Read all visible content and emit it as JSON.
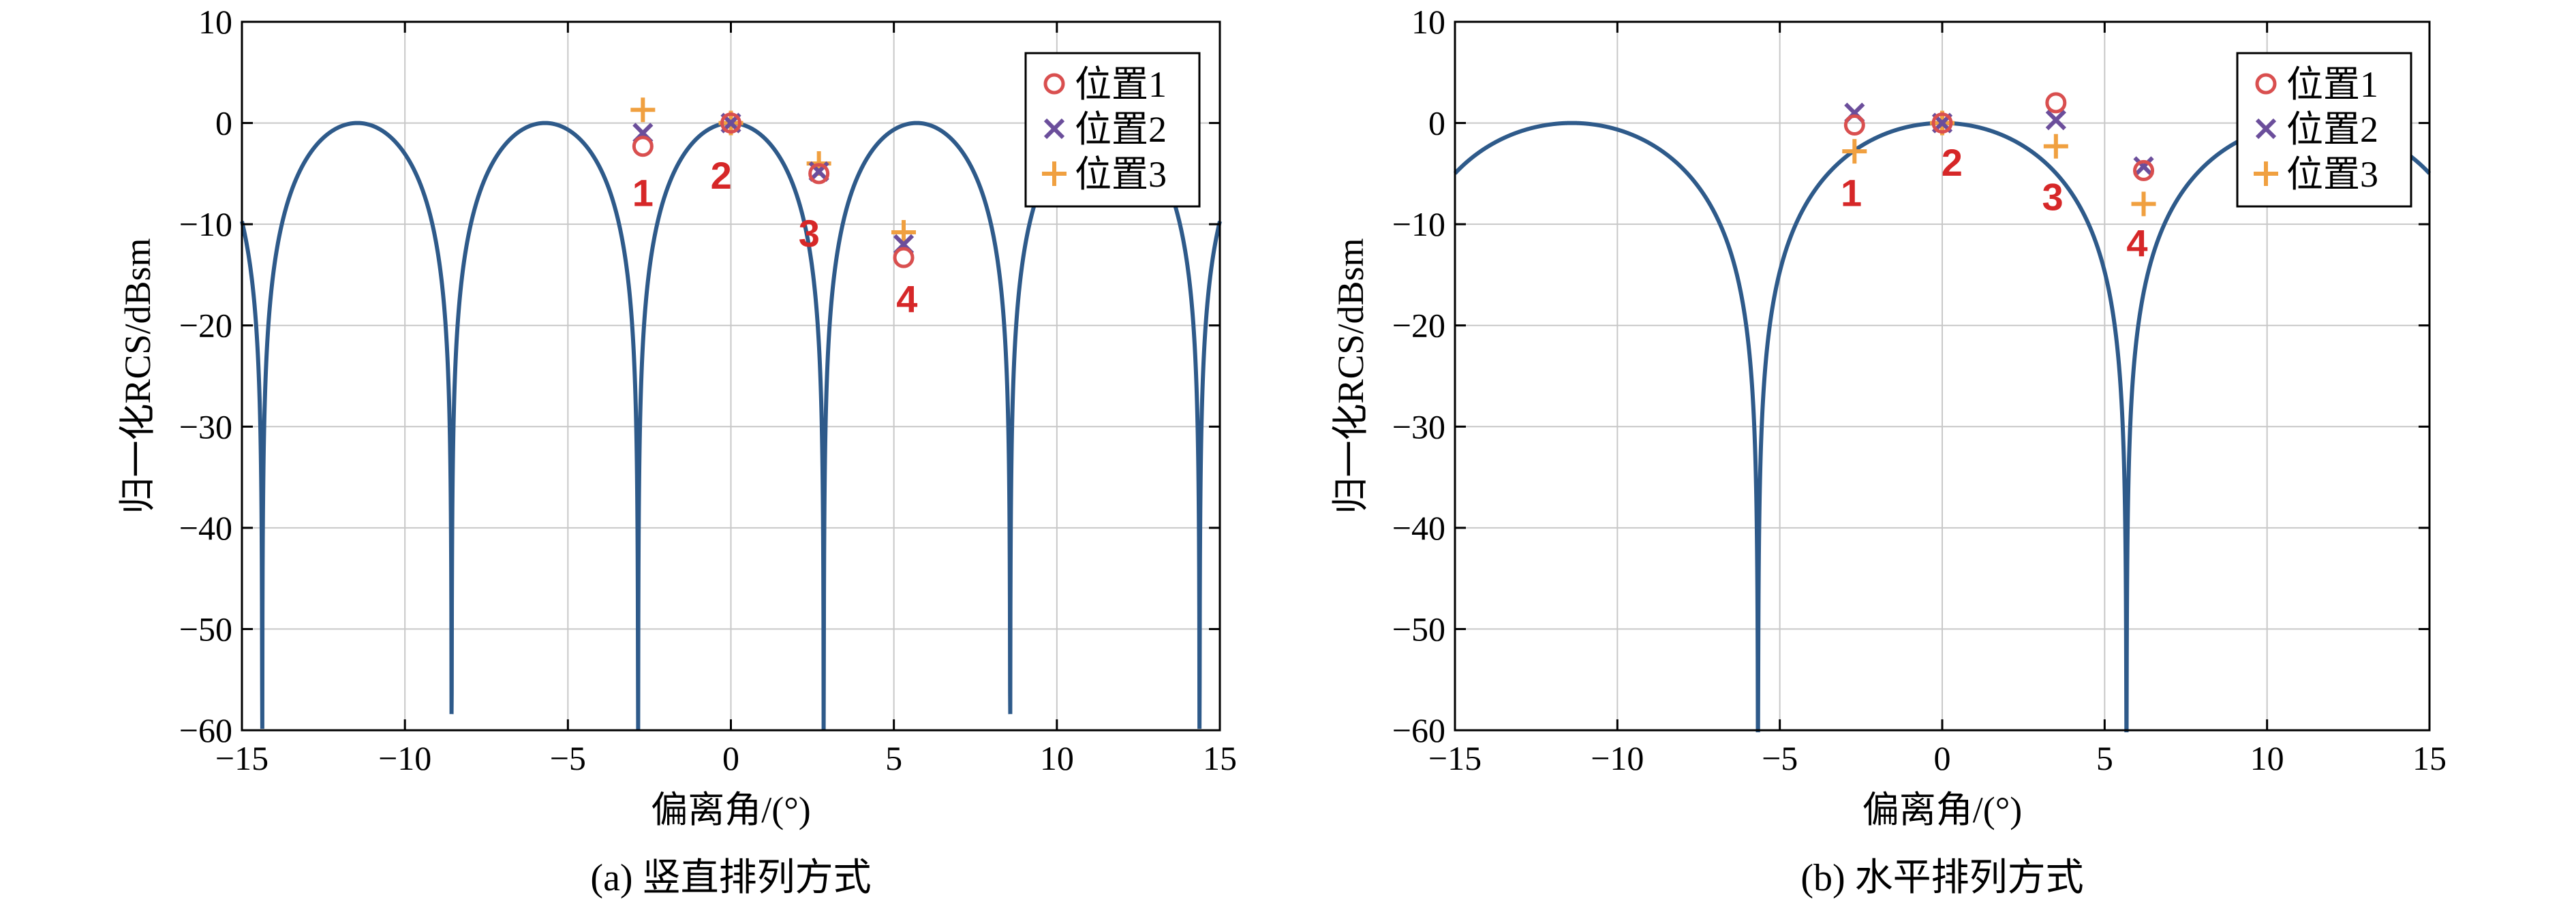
{
  "chart_data": [
    {
      "type": "line",
      "caption": "(a) 竖直排列方式",
      "xlabel": "偏离角/(°)",
      "ylabel": "归一化RCS/dBsm",
      "xlim": [
        -15,
        15
      ],
      "ylim": [
        -60,
        10
      ],
      "xticks": [
        "−15",
        "−10",
        "−5",
        "0",
        "5",
        "10",
        "15"
      ],
      "yticks": [
        "10",
        "0",
        "−10",
        "−20",
        "−30",
        "−40",
        "−50",
        "−60"
      ],
      "grid": true,
      "legend_position": "top-right",
      "pattern": {
        "null_spacing_deg": 5.7
      },
      "series": [
        {
          "name": "位置1",
          "marker": "circle",
          "color": "#d94f4f",
          "x": [
            -2.7,
            0,
            2.7,
            5.3
          ],
          "y": [
            -2.3,
            0,
            -5.0,
            -13.3
          ]
        },
        {
          "name": "位置2",
          "marker": "x",
          "color": "#6b4e9b",
          "x": [
            -2.7,
            0,
            2.7,
            5.3
          ],
          "y": [
            -1.0,
            0,
            -4.8,
            -12.0
          ]
        },
        {
          "name": "位置3",
          "marker": "plus",
          "color": "#f0a040",
          "x": [
            -2.7,
            0,
            2.7,
            5.3
          ],
          "y": [
            1.3,
            0,
            -4.0,
            -10.8
          ]
        }
      ],
      "position_labels": [
        {
          "text": "1",
          "x": -2.7,
          "y": -8.2
        },
        {
          "text": "2",
          "x": -0.3,
          "y": -6.5
        },
        {
          "text": "3",
          "x": 2.4,
          "y": -12.2
        },
        {
          "text": "4",
          "x": 5.4,
          "y": -18.7
        }
      ]
    },
    {
      "type": "line",
      "caption": "(b) 水平排列方式",
      "xlabel": "偏离角/(°)",
      "ylabel": "归一化RCS/dBsm",
      "xlim": [
        -15,
        15
      ],
      "ylim": [
        -60,
        10
      ],
      "xticks": [
        "−15",
        "−10",
        "−5",
        "0",
        "5",
        "10",
        "15"
      ],
      "yticks": [
        "10",
        "0",
        "−10",
        "−20",
        "−30",
        "−40",
        "−50",
        "−60"
      ],
      "grid": true,
      "legend_position": "top-right",
      "pattern": {
        "null_spacing_deg": 11.4
      },
      "series": [
        {
          "name": "位置1",
          "marker": "circle",
          "color": "#d94f4f",
          "x": [
            -2.7,
            0,
            3.5,
            6.2
          ],
          "y": [
            -0.2,
            0,
            2.0,
            -4.7
          ]
        },
        {
          "name": "位置2",
          "marker": "x",
          "color": "#6b4e9b",
          "x": [
            -2.7,
            0,
            3.5,
            6.2
          ],
          "y": [
            1.0,
            0,
            0.3,
            -4.3
          ]
        },
        {
          "name": "位置3",
          "marker": "plus",
          "color": "#f0a040",
          "x": [
            -2.7,
            0,
            3.5,
            6.2
          ],
          "y": [
            -2.8,
            0,
            -2.3,
            -8.0
          ]
        }
      ],
      "position_labels": [
        {
          "text": "1",
          "x": -2.8,
          "y": -8.2
        },
        {
          "text": "2",
          "x": 0.3,
          "y": -5.2
        },
        {
          "text": "3",
          "x": 3.4,
          "y": -8.6
        },
        {
          "text": "4",
          "x": 6.0,
          "y": -13.2
        }
      ]
    }
  ],
  "colors": {
    "curve": "#2e5a8a",
    "grid": "#c8c8c8",
    "position_label": "#d62728"
  }
}
